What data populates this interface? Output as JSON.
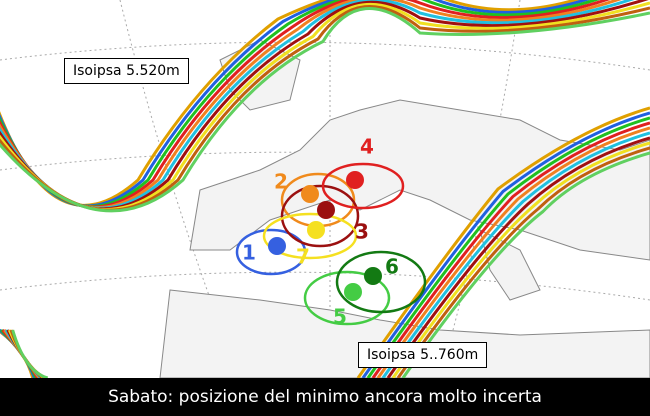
{
  "annotations": [
    {
      "text": "Isoipsa 5.520m"
    },
    {
      "text": "Isoipsa 5..760m"
    }
  ],
  "minima": [
    {
      "label": "1",
      "color": "#3560e0"
    },
    {
      "label": "2",
      "color": "#f08a1c"
    },
    {
      "label": "3",
      "color": "#9b1010"
    },
    {
      "label": "4",
      "color": "#e02020"
    },
    {
      "label": "5",
      "color": "#44cc44"
    },
    {
      "label": "6",
      "color": "#137a13"
    },
    {
      "label": "7",
      "color": "#f5e020"
    }
  ],
  "caption": "Sabato: posizione del minimo ancora molto incerta"
}
